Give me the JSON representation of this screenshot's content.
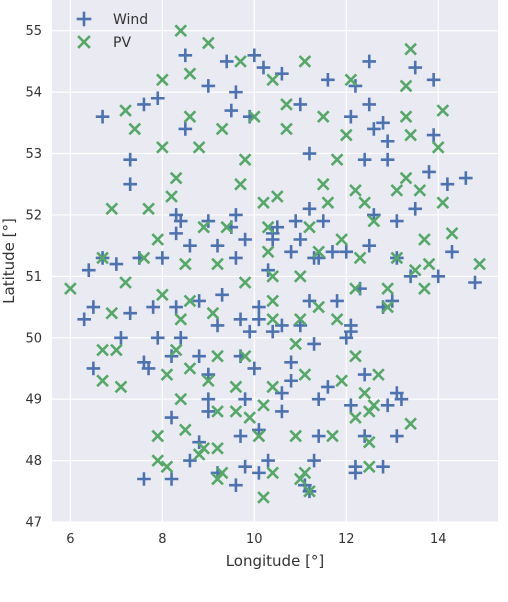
{
  "chart_data": {
    "type": "scatter",
    "xlabel": "Longitude [°]",
    "ylabel": "Latitude [°]",
    "xlim": [
      5.6,
      15.3
    ],
    "ylim": [
      47.0,
      55.5
    ],
    "x_ticks": [
      6,
      8,
      10,
      12,
      14
    ],
    "y_ticks": [
      47,
      48,
      49,
      50,
      51,
      52,
      53,
      54,
      55
    ],
    "grid": true,
    "background_color": "#eaeaf2",
    "legend_position": "top-left",
    "series": [
      {
        "name": "Wind",
        "marker": "plus",
        "color": "#4c72b0",
        "points": [
          [
            8.5,
            54.6
          ],
          [
            9.0,
            54.1
          ],
          [
            9.4,
            54.5
          ],
          [
            10.0,
            54.6
          ],
          [
            10.2,
            54.4
          ],
          [
            10.6,
            54.3
          ],
          [
            11.6,
            54.2
          ],
          [
            12.2,
            54.1
          ],
          [
            12.5,
            54.5
          ],
          [
            13.5,
            54.4
          ],
          [
            13.9,
            54.2
          ],
          [
            6.7,
            53.6
          ],
          [
            7.6,
            53.8
          ],
          [
            8.5,
            53.4
          ],
          [
            9.5,
            53.7
          ],
          [
            9.9,
            53.6
          ],
          [
            11.0,
            53.8
          ],
          [
            12.1,
            53.6
          ],
          [
            12.6,
            53.4
          ],
          [
            12.9,
            53.2
          ],
          [
            13.9,
            53.3
          ],
          [
            7.9,
            53.9
          ],
          [
            9.6,
            54.0
          ],
          [
            12.5,
            53.8
          ],
          [
            12.8,
            53.5
          ],
          [
            11.2,
            53.0
          ],
          [
            7.3,
            52.9
          ],
          [
            12.4,
            52.9
          ],
          [
            12.9,
            52.9
          ],
          [
            13.8,
            52.7
          ],
          [
            14.6,
            52.6
          ],
          [
            7.3,
            52.5
          ],
          [
            8.3,
            52.0
          ],
          [
            9.0,
            51.9
          ],
          [
            9.6,
            52.0
          ],
          [
            10.5,
            51.8
          ],
          [
            10.9,
            51.9
          ],
          [
            11.5,
            51.9
          ],
          [
            12.6,
            52.0
          ],
          [
            13.1,
            51.9
          ],
          [
            13.5,
            52.1
          ],
          [
            14.2,
            52.5
          ],
          [
            11.2,
            52.1
          ],
          [
            8.4,
            51.9
          ],
          [
            9.8,
            51.6
          ],
          [
            10.4,
            51.7
          ],
          [
            11.0,
            51.6
          ],
          [
            11.4,
            51.3
          ],
          [
            12.0,
            51.4
          ],
          [
            12.5,
            51.5
          ],
          [
            13.1,
            51.3
          ],
          [
            14.3,
            51.4
          ],
          [
            6.4,
            51.1
          ],
          [
            7.0,
            51.2
          ],
          [
            7.5,
            51.3
          ],
          [
            8.0,
            51.3
          ],
          [
            8.6,
            51.5
          ],
          [
            9.2,
            51.5
          ],
          [
            9.6,
            51.3
          ],
          [
            10.3,
            51.1
          ],
          [
            10.8,
            51.4
          ],
          [
            11.3,
            51.3
          ],
          [
            11.7,
            51.4
          ],
          [
            12.3,
            50.8
          ],
          [
            12.8,
            50.5
          ],
          [
            13.4,
            51.0
          ],
          [
            14.0,
            51.0
          ],
          [
            14.8,
            50.9
          ],
          [
            6.3,
            50.3
          ],
          [
            6.5,
            50.5
          ],
          [
            7.3,
            50.4
          ],
          [
            7.8,
            50.5
          ],
          [
            8.3,
            50.5
          ],
          [
            8.8,
            50.6
          ],
          [
            9.3,
            50.7
          ],
          [
            9.7,
            50.3
          ],
          [
            10.1,
            50.3
          ],
          [
            10.6,
            50.2
          ],
          [
            11.2,
            50.6
          ],
          [
            11.8,
            50.6
          ],
          [
            12.1,
            50.2
          ],
          [
            13.0,
            50.6
          ],
          [
            7.1,
            50.0
          ],
          [
            7.9,
            50.0
          ],
          [
            8.4,
            50.0
          ],
          [
            9.2,
            50.2
          ],
          [
            9.9,
            50.1
          ],
          [
            10.4,
            50.1
          ],
          [
            10.8,
            49.6
          ],
          [
            11.3,
            49.9
          ],
          [
            12.0,
            50.0
          ],
          [
            12.1,
            50.1
          ],
          [
            6.5,
            49.5
          ],
          [
            7.6,
            49.6
          ],
          [
            8.2,
            49.7
          ],
          [
            8.8,
            49.7
          ],
          [
            9.7,
            49.7
          ],
          [
            10.0,
            49.5
          ],
          [
            10.8,
            49.3
          ],
          [
            11.6,
            49.2
          ],
          [
            12.4,
            49.4
          ],
          [
            13.1,
            49.1
          ],
          [
            7.7,
            49.5
          ],
          [
            9.0,
            49.0
          ],
          [
            9.8,
            49.0
          ],
          [
            10.6,
            49.1
          ],
          [
            11.4,
            49.0
          ],
          [
            12.1,
            48.9
          ],
          [
            12.9,
            48.9
          ],
          [
            13.2,
            49.0
          ],
          [
            8.2,
            48.7
          ],
          [
            8.8,
            48.3
          ],
          [
            9.7,
            48.4
          ],
          [
            10.1,
            48.5
          ],
          [
            10.6,
            48.8
          ],
          [
            11.4,
            48.4
          ],
          [
            12.4,
            48.4
          ],
          [
            13.1,
            48.4
          ],
          [
            7.6,
            47.7
          ],
          [
            8.2,
            47.7
          ],
          [
            8.6,
            48.0
          ],
          [
            9.2,
            47.8
          ],
          [
            9.6,
            47.6
          ],
          [
            9.8,
            47.9
          ],
          [
            10.1,
            47.8
          ],
          [
            10.3,
            48.0
          ],
          [
            11.1,
            47.6
          ],
          [
            11.3,
            48.0
          ],
          [
            12.2,
            47.9
          ],
          [
            12.8,
            47.9
          ],
          [
            9.0,
            48.8
          ],
          [
            11.2,
            47.5
          ],
          [
            9.0,
            49.4
          ],
          [
            12.2,
            47.8
          ],
          [
            10.4,
            51.6
          ],
          [
            10.1,
            50.5
          ],
          [
            6.7,
            51.3
          ],
          [
            9.5,
            51.8
          ],
          [
            11.0,
            50.2
          ],
          [
            8.3,
            51.7
          ]
        ]
      },
      {
        "name": "PV",
        "marker": "x",
        "color": "#55a868",
        "points": [
          [
            8.4,
            55.0
          ],
          [
            9.0,
            54.8
          ],
          [
            9.7,
            54.5
          ],
          [
            10.4,
            54.2
          ],
          [
            11.1,
            54.5
          ],
          [
            12.1,
            54.2
          ],
          [
            13.3,
            54.1
          ],
          [
            13.4,
            54.7
          ],
          [
            8.0,
            54.2
          ],
          [
            8.6,
            54.3
          ],
          [
            7.2,
            53.7
          ],
          [
            8.6,
            53.6
          ],
          [
            9.3,
            53.4
          ],
          [
            10.0,
            53.6
          ],
          [
            10.7,
            53.8
          ],
          [
            11.5,
            53.6
          ],
          [
            13.3,
            53.6
          ],
          [
            14.1,
            53.7
          ],
          [
            7.4,
            53.4
          ],
          [
            10.7,
            53.4
          ],
          [
            12.0,
            53.3
          ],
          [
            13.4,
            53.3
          ],
          [
            8.0,
            53.1
          ],
          [
            8.8,
            53.1
          ],
          [
            9.8,
            52.9
          ],
          [
            11.8,
            52.9
          ],
          [
            14.0,
            53.1
          ],
          [
            8.3,
            52.6
          ],
          [
            9.7,
            52.5
          ],
          [
            10.5,
            52.3
          ],
          [
            11.5,
            52.5
          ],
          [
            12.2,
            52.4
          ],
          [
            13.3,
            52.6
          ],
          [
            13.1,
            52.4
          ],
          [
            13.6,
            52.4
          ],
          [
            8.2,
            52.3
          ],
          [
            7.7,
            52.1
          ],
          [
            6.9,
            52.1
          ],
          [
            10.2,
            52.2
          ],
          [
            11.6,
            52.2
          ],
          [
            12.4,
            52.2
          ],
          [
            14.1,
            52.2
          ],
          [
            8.9,
            51.8
          ],
          [
            9.4,
            51.8
          ],
          [
            10.3,
            51.8
          ],
          [
            11.2,
            51.8
          ],
          [
            12.6,
            51.9
          ],
          [
            7.9,
            51.6
          ],
          [
            10.3,
            51.4
          ],
          [
            11.9,
            51.6
          ],
          [
            13.7,
            51.6
          ],
          [
            14.3,
            51.7
          ],
          [
            6.7,
            51.3
          ],
          [
            7.6,
            51.3
          ],
          [
            8.5,
            51.2
          ],
          [
            9.2,
            51.2
          ],
          [
            10.4,
            51.0
          ],
          [
            11.0,
            51.0
          ],
          [
            11.4,
            51.4
          ],
          [
            12.3,
            51.3
          ],
          [
            13.1,
            51.3
          ],
          [
            13.8,
            51.2
          ],
          [
            14.9,
            51.2
          ],
          [
            6.0,
            50.8
          ],
          [
            7.2,
            50.9
          ],
          [
            8.0,
            50.7
          ],
          [
            8.6,
            50.6
          ],
          [
            9.8,
            50.9
          ],
          [
            10.4,
            50.6
          ],
          [
            11.0,
            50.3
          ],
          [
            11.4,
            50.5
          ],
          [
            12.2,
            50.8
          ],
          [
            12.9,
            50.8
          ],
          [
            13.7,
            50.8
          ],
          [
            6.9,
            50.4
          ],
          [
            8.4,
            50.3
          ],
          [
            9.1,
            50.4
          ],
          [
            10.4,
            50.3
          ],
          [
            11.8,
            50.3
          ],
          [
            12.9,
            50.5
          ],
          [
            6.7,
            49.8
          ],
          [
            7.0,
            49.8
          ],
          [
            8.3,
            49.8
          ],
          [
            9.2,
            49.7
          ],
          [
            9.8,
            49.7
          ],
          [
            10.9,
            49.9
          ],
          [
            12.2,
            49.7
          ],
          [
            12.7,
            49.4
          ],
          [
            6.7,
            49.3
          ],
          [
            7.1,
            49.2
          ],
          [
            8.1,
            49.4
          ],
          [
            8.6,
            49.5
          ],
          [
            9.0,
            49.3
          ],
          [
            9.6,
            49.2
          ],
          [
            10.4,
            49.2
          ],
          [
            11.1,
            49.4
          ],
          [
            11.9,
            49.3
          ],
          [
            12.4,
            49.1
          ],
          [
            8.4,
            49.0
          ],
          [
            9.2,
            48.8
          ],
          [
            9.6,
            48.8
          ],
          [
            9.9,
            48.7
          ],
          [
            10.2,
            48.9
          ],
          [
            12.2,
            48.7
          ],
          [
            12.5,
            48.8
          ],
          [
            13.4,
            48.6
          ],
          [
            7.9,
            48.4
          ],
          [
            8.5,
            48.5
          ],
          [
            8.9,
            48.2
          ],
          [
            9.2,
            48.2
          ],
          [
            10.1,
            48.4
          ],
          [
            10.9,
            48.4
          ],
          [
            11.7,
            48.4
          ],
          [
            12.5,
            48.3
          ],
          [
            7.9,
            48.0
          ],
          [
            8.1,
            47.9
          ],
          [
            9.3,
            47.8
          ],
          [
            10.4,
            47.8
          ],
          [
            11.1,
            47.8
          ],
          [
            11.2,
            47.5
          ],
          [
            10.2,
            47.4
          ],
          [
            12.5,
            47.9
          ],
          [
            11.0,
            47.7
          ],
          [
            9.2,
            47.7
          ],
          [
            8.8,
            48.1
          ],
          [
            12.6,
            48.9
          ],
          [
            13.5,
            51.1
          ]
        ]
      }
    ]
  }
}
